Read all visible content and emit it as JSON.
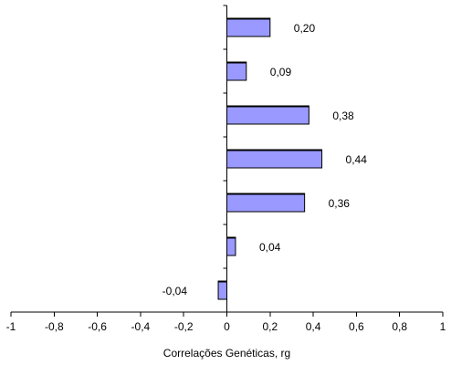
{
  "chart_data": {
    "type": "bar",
    "orientation": "horizontal",
    "categories": [
      "",
      "",
      "",
      "",
      "",
      "",
      ""
    ],
    "values": [
      0.2,
      0.09,
      0.38,
      0.44,
      0.36,
      0.04,
      -0.04
    ],
    "data_labels": [
      "0,20",
      "0,09",
      "0,38",
      "0,44",
      "0,36",
      "0,04",
      "-0,04"
    ],
    "xlabel": "Correlações Genéticas, rg",
    "ylabel": "",
    "xlim": [
      -1,
      1
    ],
    "xticks": [
      -1,
      -0.8,
      -0.6,
      -0.4,
      -0.2,
      0,
      0.2,
      0.4,
      0.6,
      0.8,
      1
    ],
    "xtick_labels": [
      "-1",
      "-0,8",
      "-0,6",
      "-0,4",
      "-0,2",
      "0",
      "0,2",
      "0,4",
      "0,6",
      "0,8",
      "1"
    ],
    "grid": false,
    "legend": "none",
    "bar_color": "#9999ff",
    "bar_edge_color": "#000000"
  }
}
